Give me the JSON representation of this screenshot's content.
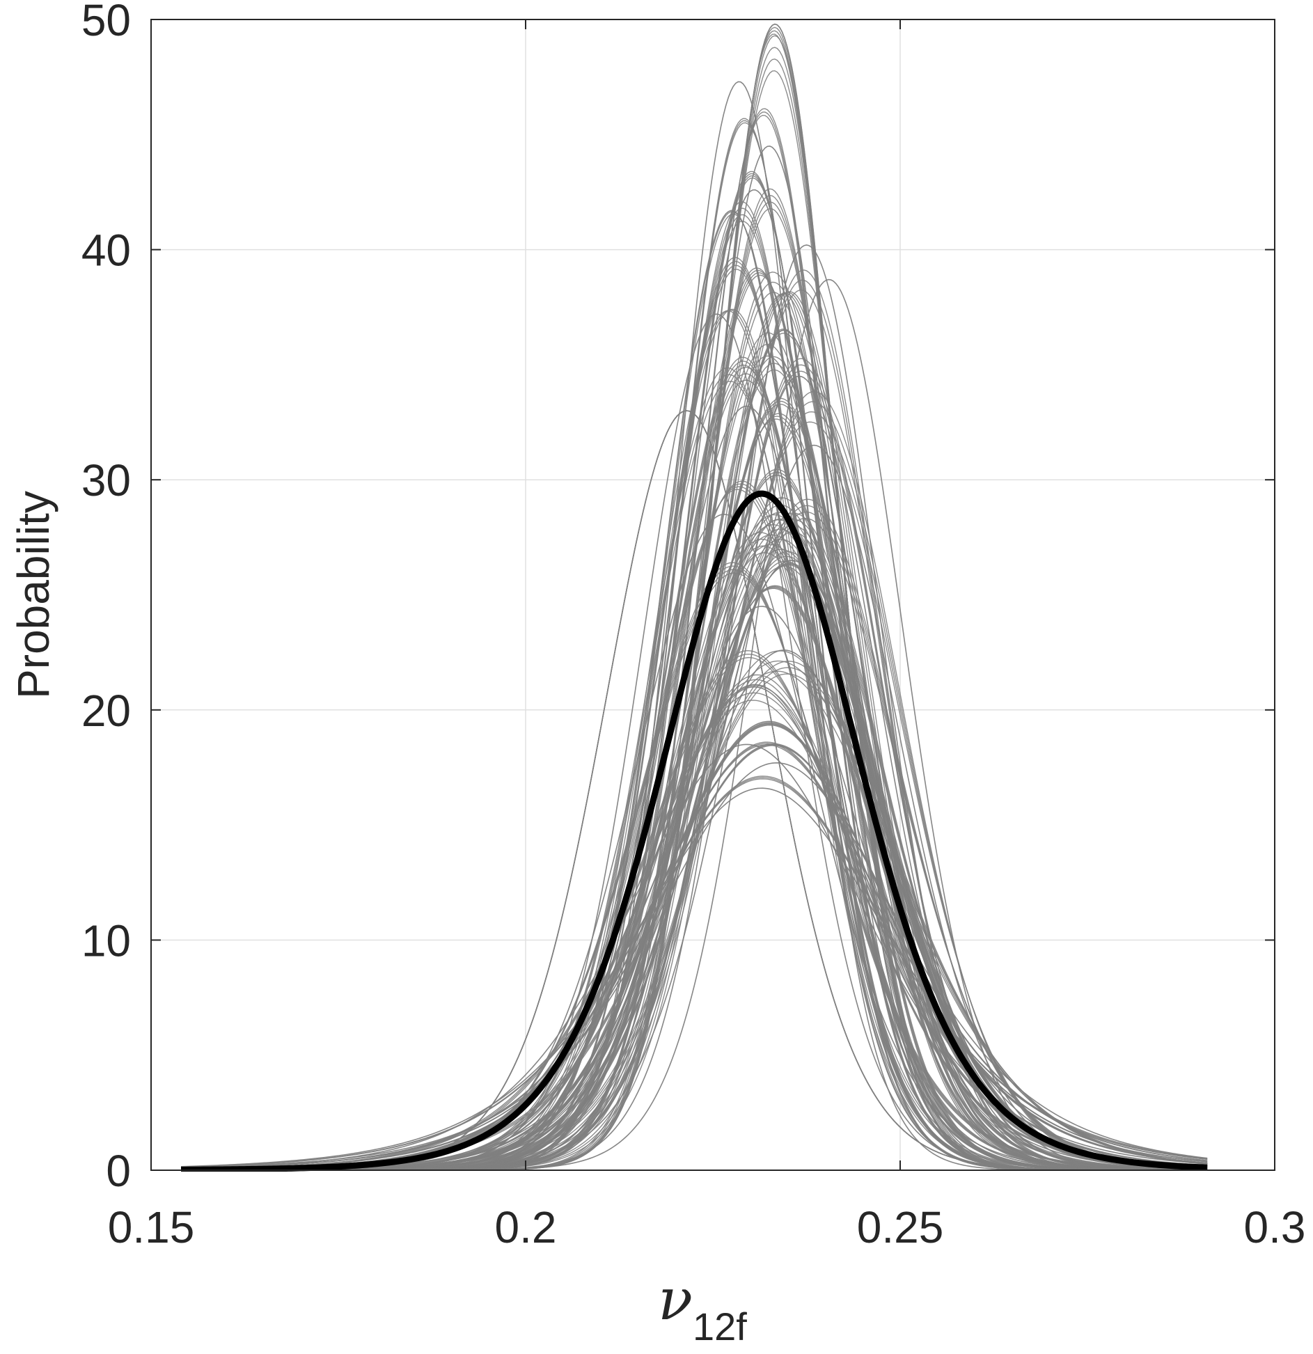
{
  "chart_data": {
    "type": "line",
    "title": "",
    "xlabel": {
      "symbol": "ν",
      "subscript": "12f"
    },
    "ylabel": "Probability",
    "xlim": [
      0.15,
      0.3
    ],
    "ylim": [
      0,
      50
    ],
    "grid": true,
    "legend": "none",
    "x_ticks": [
      {
        "value": 0.15,
        "label": "0.15"
      },
      {
        "value": 0.2,
        "label": "0.2"
      },
      {
        "value": 0.25,
        "label": "0.25"
      },
      {
        "value": 0.3,
        "label": "0.3"
      }
    ],
    "y_ticks": [
      {
        "value": 0,
        "label": "0"
      },
      {
        "value": 10,
        "label": "10"
      },
      {
        "value": 20,
        "label": "20"
      },
      {
        "value": 30,
        "label": "30"
      },
      {
        "value": 40,
        "label": "40"
      },
      {
        "value": 50,
        "label": "50"
      }
    ],
    "x_range_plotted": [
      0.154,
      0.291
    ],
    "colors": {
      "samples": "#808080",
      "mean": "#000000",
      "grid": "#e0e0e0",
      "axes": "#262626"
    },
    "series": [
      {
        "role": "mean",
        "peak_x": 0.2315,
        "peak_y": 29.4,
        "sigma_left": 0.0135,
        "sigma_right": 0.0135,
        "tail_shape": 8
      },
      {
        "role": "sample",
        "peak_x": 0.2333,
        "peak_y": 49.8,
        "sigma_left": 0.0082,
        "sigma_right": 0.0082,
        "tail_shape": 30
      },
      {
        "role": "sample",
        "peak_x": 0.2285,
        "peak_y": 47.3,
        "sigma_left": 0.0085,
        "sigma_right": 0.0085,
        "tail_shape": 30
      },
      {
        "role": "sample",
        "peak_x": 0.2325,
        "peak_y": 44.5,
        "sigma_left": 0.009,
        "sigma_right": 0.009,
        "tail_shape": 25
      },
      {
        "role": "sample",
        "peak_x": 0.2305,
        "peak_y": 42.6,
        "sigma_left": 0.0095,
        "sigma_right": 0.0095,
        "tail_shape": 25
      },
      {
        "role": "sample",
        "peak_x": 0.2275,
        "peak_y": 41.7,
        "sigma_left": 0.0095,
        "sigma_right": 0.0095,
        "tail_shape": 25
      },
      {
        "role": "sample",
        "peak_x": 0.2375,
        "peak_y": 40.2,
        "sigma_left": 0.0098,
        "sigma_right": 0.0098,
        "tail_shape": 22
      },
      {
        "role": "sample",
        "peak_x": 0.2405,
        "peak_y": 38.7,
        "sigma_left": 0.01,
        "sigma_right": 0.01,
        "tail_shape": 20
      },
      {
        "role": "sample",
        "peak_x": 0.2255,
        "peak_y": 37.2,
        "sigma_left": 0.0102,
        "sigma_right": 0.0102,
        "tail_shape": 20
      },
      {
        "role": "sample",
        "peak_x": 0.2345,
        "peak_y": 36.5,
        "sigma_left": 0.0105,
        "sigma_right": 0.0105,
        "tail_shape": 18
      },
      {
        "role": "sample",
        "peak_x": 0.2365,
        "peak_y": 34.5,
        "sigma_left": 0.0108,
        "sigma_right": 0.0108,
        "tail_shape": 16
      },
      {
        "role": "sample",
        "peak_x": 0.2295,
        "peak_y": 33.2,
        "sigma_left": 0.011,
        "sigma_right": 0.011,
        "tail_shape": 15
      },
      {
        "role": "sample",
        "peak_x": 0.2215,
        "peak_y": 33.0,
        "sigma_left": 0.0112,
        "sigma_right": 0.0112,
        "tail_shape": 15
      },
      {
        "role": "sample",
        "peak_x": 0.2385,
        "peak_y": 31.5,
        "sigma_left": 0.0115,
        "sigma_right": 0.0115,
        "tail_shape": 14
      },
      {
        "role": "sample",
        "peak_x": 0.2335,
        "peak_y": 30.2,
        "sigma_left": 0.0118,
        "sigma_right": 0.0118,
        "tail_shape": 12
      },
      {
        "role": "sample",
        "peak_x": 0.2265,
        "peak_y": 28.5,
        "sigma_left": 0.0122,
        "sigma_right": 0.0122,
        "tail_shape": 12
      },
      {
        "role": "sample",
        "peak_x": 0.2355,
        "peak_y": 26.5,
        "sigma_left": 0.0128,
        "sigma_right": 0.0128,
        "tail_shape": 10
      },
      {
        "role": "sample",
        "peak_x": 0.2315,
        "peak_y": 24.5,
        "sigma_left": 0.0132,
        "sigma_right": 0.0132,
        "tail_shape": 9
      },
      {
        "role": "sample",
        "peak_x": 0.2345,
        "peak_y": 22.6,
        "sigma_left": 0.014,
        "sigma_right": 0.014,
        "tail_shape": 8
      },
      {
        "role": "sample",
        "peak_x": 0.2305,
        "peak_y": 21.0,
        "sigma_left": 0.0148,
        "sigma_right": 0.0148,
        "tail_shape": 7
      },
      {
        "role": "sample",
        "peak_x": 0.2325,
        "peak_y": 19.5,
        "sigma_left": 0.0158,
        "sigma_right": 0.0158,
        "tail_shape": 6
      },
      {
        "role": "sample",
        "peak_x": 0.2295,
        "peak_y": 18.5,
        "sigma_left": 0.0165,
        "sigma_right": 0.0165,
        "tail_shape": 6
      },
      {
        "role": "sample",
        "peak_x": 0.2335,
        "peak_y": 17.7,
        "sigma_left": 0.0172,
        "sigma_right": 0.0172,
        "tail_shape": 5
      },
      {
        "role": "sample",
        "peak_x": 0.2315,
        "peak_y": 16.6,
        "sigma_left": 0.018,
        "sigma_right": 0.018,
        "tail_shape": 5
      }
    ]
  }
}
